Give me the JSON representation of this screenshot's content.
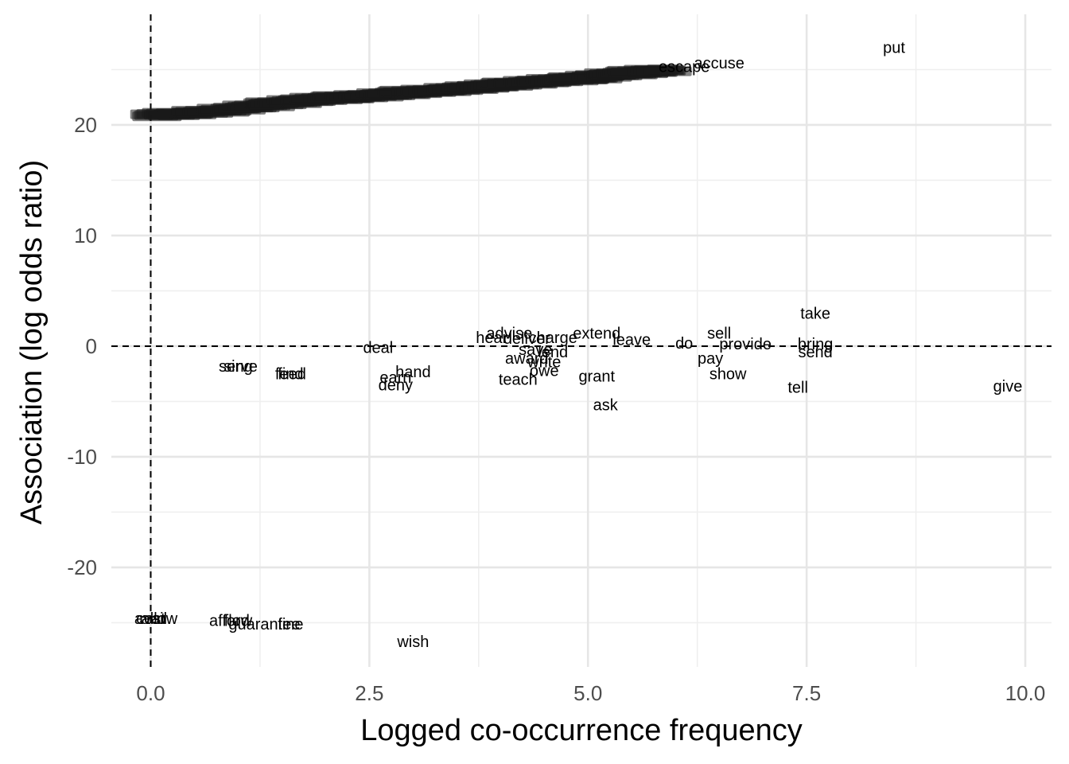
{
  "chart_data": {
    "type": "scatter",
    "title": "",
    "xlabel": "Logged co-occurrence frequency",
    "ylabel": "Association (log odds ratio)",
    "xlim": [
      -0.45,
      10.3
    ],
    "ylim": [
      -29,
      30
    ],
    "grid": true,
    "x_ticks": [
      {
        "value": 0.0,
        "label": "0.0"
      },
      {
        "value": 2.5,
        "label": "2.5"
      },
      {
        "value": 5.0,
        "label": "5.0"
      },
      {
        "value": 7.5,
        "label": "7.5"
      },
      {
        "value": 10.0,
        "label": "10.0"
      }
    ],
    "y_ticks": [
      {
        "value": -20,
        "label": "-20"
      },
      {
        "value": -10,
        "label": "-10"
      },
      {
        "value": 0,
        "label": "0"
      },
      {
        "value": 10,
        "label": "10"
      },
      {
        "value": 20,
        "label": "20"
      }
    ],
    "reference_lines": {
      "x": 0,
      "y": 0
    },
    "points": [
      {
        "label": "put",
        "x": 8.5,
        "y": 27.0
      },
      {
        "label": "accuse",
        "x": 6.5,
        "y": 25.6
      },
      {
        "label": "escape",
        "x": 6.1,
        "y": 25.3
      },
      {
        "label": "take",
        "x": 7.6,
        "y": 3.0
      },
      {
        "label": "sell",
        "x": 6.5,
        "y": 1.2
      },
      {
        "label": "extend",
        "x": 5.1,
        "y": 1.2
      },
      {
        "label": "advise",
        "x": 4.1,
        "y": 1.2
      },
      {
        "label": "hear",
        "x": 3.9,
        "y": 0.8
      },
      {
        "label": "charge",
        "x": 4.6,
        "y": 0.8
      },
      {
        "label": "deliver",
        "x": 4.3,
        "y": 0.7
      },
      {
        "label": "leave",
        "x": 5.5,
        "y": 0.6
      },
      {
        "label": "do",
        "x": 6.1,
        "y": 0.3
      },
      {
        "label": "provide",
        "x": 6.8,
        "y": 0.2
      },
      {
        "label": "bring",
        "x": 7.6,
        "y": 0.2
      },
      {
        "label": "deal",
        "x": 2.6,
        "y": -0.1
      },
      {
        "label": "send",
        "x": 7.6,
        "y": -0.5
      },
      {
        "label": "lend",
        "x": 4.6,
        "y": -0.5
      },
      {
        "label": "save",
        "x": 4.4,
        "y": -0.3
      },
      {
        "label": "award",
        "x": 4.3,
        "y": -1.1
      },
      {
        "label": "pay",
        "x": 6.4,
        "y": -1.1
      },
      {
        "label": "write",
        "x": 4.5,
        "y": -1.4
      },
      {
        "label": "owe",
        "x": 4.5,
        "y": -2.2
      },
      {
        "label": "hand",
        "x": 3.0,
        "y": -2.3
      },
      {
        "label": "serve",
        "x": 1.0,
        "y": -1.8
      },
      {
        "label": "sing",
        "x": 1.0,
        "y": -1.8
      },
      {
        "label": "feed",
        "x": 1.6,
        "y": -2.5
      },
      {
        "label": "find",
        "x": 1.6,
        "y": -2.5
      },
      {
        "label": "earn",
        "x": 2.8,
        "y": -2.8
      },
      {
        "label": "show",
        "x": 6.6,
        "y": -2.5
      },
      {
        "label": "grant",
        "x": 5.1,
        "y": -2.7
      },
      {
        "label": "teach",
        "x": 4.2,
        "y": -3.0
      },
      {
        "label": "deny",
        "x": 2.8,
        "y": -3.5
      },
      {
        "label": "tell",
        "x": 7.4,
        "y": -3.7
      },
      {
        "label": "give",
        "x": 9.8,
        "y": -3.6
      },
      {
        "label": "ask",
        "x": 5.2,
        "y": -5.3
      },
      {
        "label": "allow",
        "x": 0.1,
        "y": -24.6
      },
      {
        "label": "avail",
        "x": 0.0,
        "y": -24.6
      },
      {
        "label": "cost",
        "x": 0.0,
        "y": -24.6
      },
      {
        "label": "afford",
        "x": 0.9,
        "y": -24.8
      },
      {
        "label": "flow",
        "x": 1.0,
        "y": -24.8
      },
      {
        "label": "guarantee",
        "x": 1.3,
        "y": -25.1
      },
      {
        "label": "fine",
        "x": 1.6,
        "y": -25.1
      },
      {
        "label": "wish",
        "x": 3.0,
        "y": -26.7
      },
      {
        "label": "",
        "x": 5.9,
        "y": 24.9
      },
      {
        "label": "",
        "x": 5.6,
        "y": 24.7
      },
      {
        "label": "",
        "x": 5.2,
        "y": 24.4
      },
      {
        "label": "",
        "x": 4.9,
        "y": 24.1
      },
      {
        "label": "",
        "x": 4.5,
        "y": 23.9
      },
      {
        "label": "",
        "x": 4.1,
        "y": 23.6
      },
      {
        "label": "",
        "x": 3.8,
        "y": 23.4
      },
      {
        "label": "",
        "x": 3.4,
        "y": 23.1
      },
      {
        "label": "",
        "x": 3.0,
        "y": 22.9
      },
      {
        "label": "",
        "x": 2.6,
        "y": 22.6
      },
      {
        "label": "",
        "x": 2.2,
        "y": 22.4
      },
      {
        "label": "",
        "x": 1.8,
        "y": 22.2
      },
      {
        "label": "",
        "x": 1.4,
        "y": 21.8
      },
      {
        "label": "",
        "x": 1.0,
        "y": 21.4
      },
      {
        "label": "",
        "x": 0.5,
        "y": 21.0
      },
      {
        "label": "",
        "x": 0.0,
        "y": 20.8
      }
    ]
  }
}
